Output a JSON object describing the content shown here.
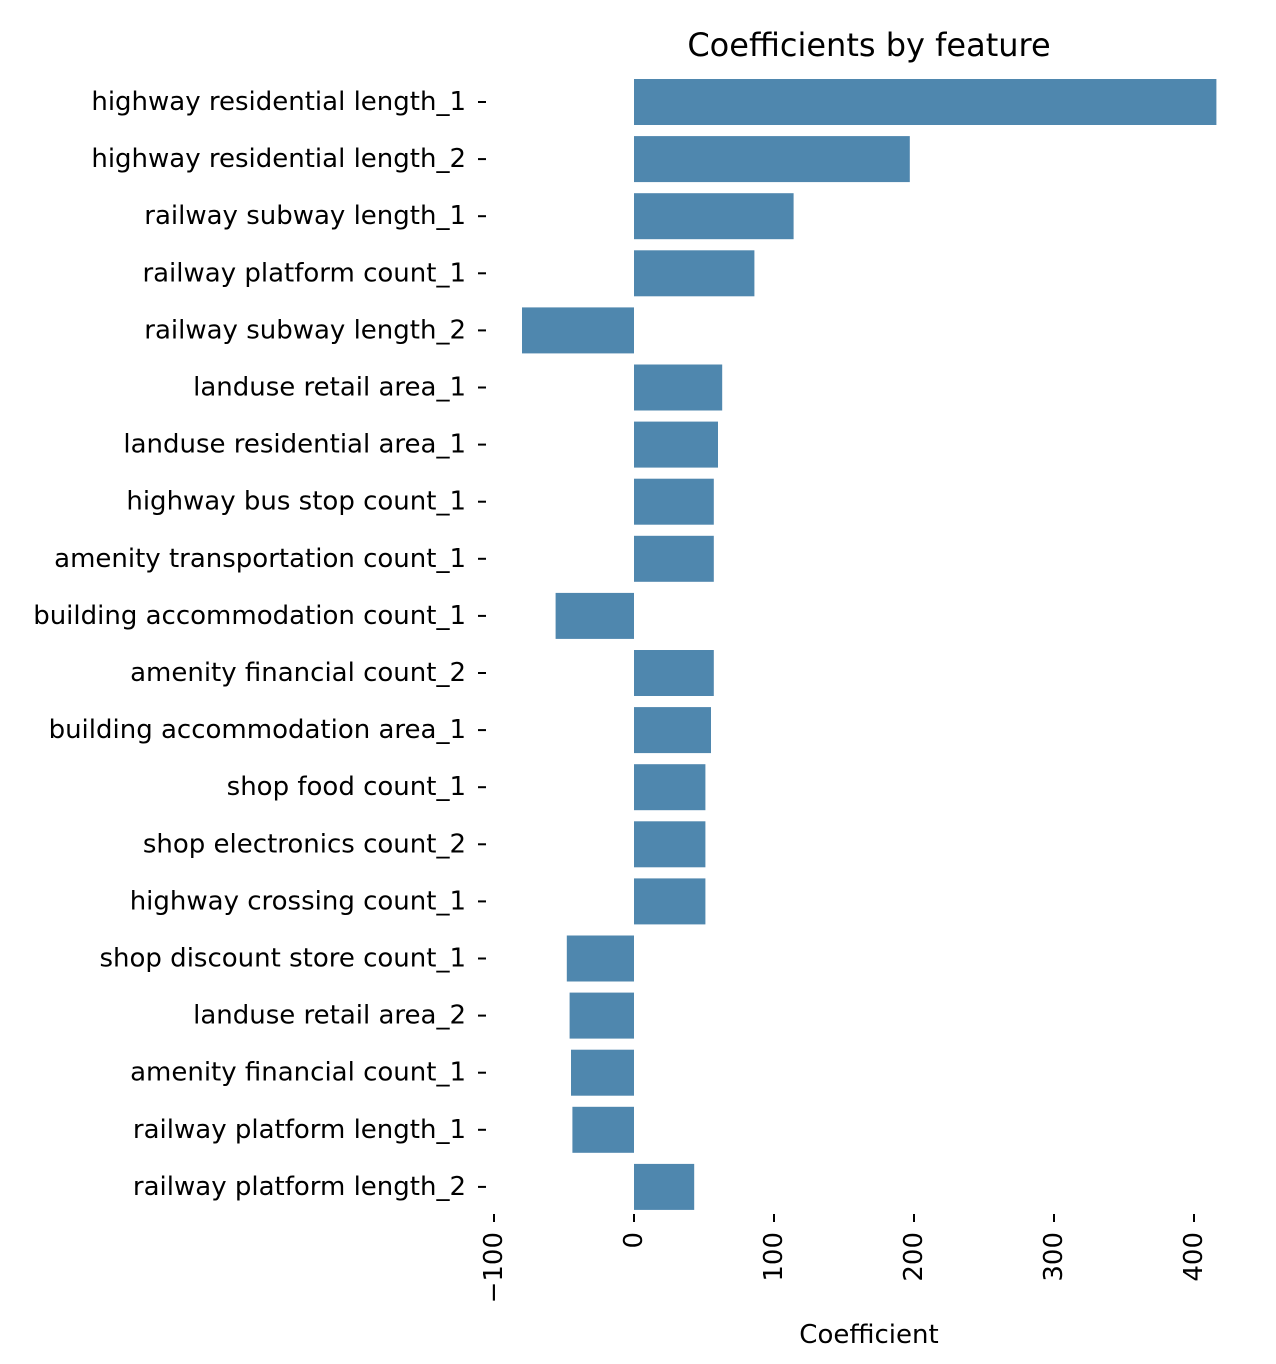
{
  "chart_data": {
    "type": "bar",
    "orientation": "horizontal",
    "title": "Coefficients by feature",
    "xlabel": "Coefficient",
    "ylabel": "",
    "categories": [
      "highway residential length_1",
      "highway residential length_2",
      "railway subway length_1",
      "railway platform count_1",
      "railway subway length_2",
      "landuse retail area_1",
      "landuse residential area_1",
      "highway bus stop count_1",
      "amenity transportation count_1",
      "building accommodation count_1",
      "amenity financial count_2",
      "building accommodation area_1",
      "shop food count_1",
      "shop electronics count_2",
      "highway crossing count_1",
      "shop discount store count_1",
      "landuse retail area_2",
      "amenity financial count_1",
      "railway platform length_1",
      "railway platform length_2"
    ],
    "values": [
      416,
      197,
      114,
      86,
      -80,
      63,
      60,
      57,
      57,
      -56,
      57,
      55,
      51,
      51,
      51,
      -48,
      -46,
      -45,
      -44,
      43
    ],
    "xlim": [
      -100,
      416
    ],
    "xticks": [
      -100,
      0,
      100,
      200,
      300,
      400
    ],
    "xtick_labels": [
      "−100",
      "0",
      "100",
      "200",
      "300",
      "400"
    ],
    "grid": false,
    "bar_color": "#4f87ae"
  }
}
